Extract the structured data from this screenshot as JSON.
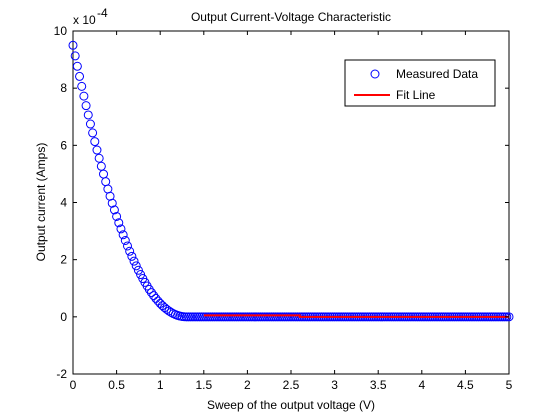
{
  "chart_data": {
    "type": "scatter",
    "title": "Output Current-Voltage Characteristic",
    "xlabel": "Sweep of the output voltage (V)",
    "ylabel": "Output current (Amps)",
    "y_exponent_label": "x 10",
    "y_exponent_power": "-4",
    "xlim": [
      0,
      5
    ],
    "ylim": [
      -2,
      10
    ],
    "xticks": [
      0,
      0.5,
      1,
      1.5,
      2,
      2.5,
      3,
      3.5,
      4,
      4.5,
      5
    ],
    "xtick_labels": [
      "0",
      "0.5",
      "1",
      "1.5",
      "2",
      "2.5",
      "3",
      "3.5",
      "4",
      "4.5",
      "5"
    ],
    "yticks": [
      -2,
      0,
      2,
      4,
      6,
      8,
      10
    ],
    "ytick_labels": [
      "-2",
      "0",
      "2",
      "4",
      "6",
      "8",
      "10"
    ],
    "grid": false,
    "legend_position": "top-right",
    "series": [
      {
        "name": "Measured Data",
        "kind": "markers",
        "marker": "open-circle",
        "color": "#0000ff",
        "x_start": 0,
        "x_end": 5,
        "x_step": 0.025,
        "knee_x": 1.3,
        "y_at_x0": 9.5,
        "curve_exponent": 2.05,
        "y_after_knee": 0
      },
      {
        "name": "Fit Line",
        "kind": "line",
        "color": "#ff0000",
        "x": [
          1.5,
          2.6,
          2.6,
          5
        ],
        "y": [
          0.05,
          0.05,
          0.0,
          0.0
        ]
      }
    ]
  }
}
